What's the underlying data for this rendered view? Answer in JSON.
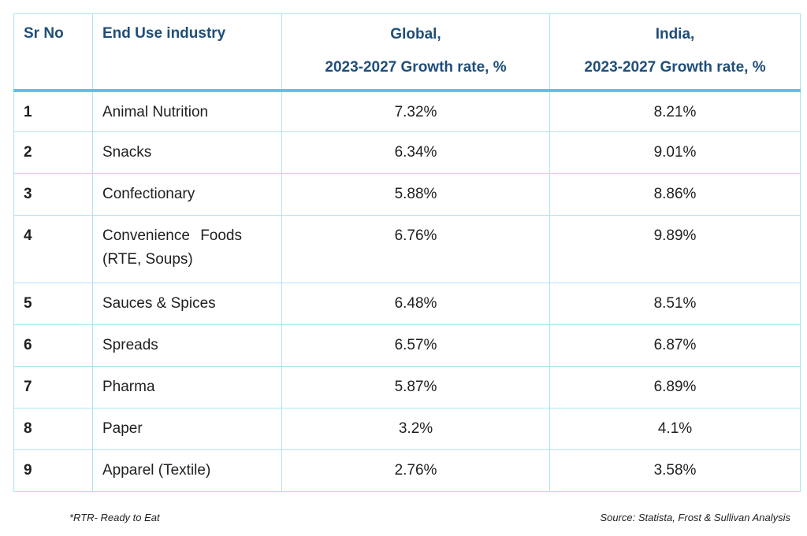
{
  "header": {
    "sr_no": "Sr No",
    "end_use": "End Use industry",
    "global_line1": "Global,",
    "global_line2": "2023-2027 Growth rate, %",
    "india_line1": "India,",
    "india_line2": "2023-2027 Growth rate, %"
  },
  "rows": [
    {
      "sr": "1",
      "industry": "Animal Nutrition",
      "global": "7.32%",
      "india": "8.21%"
    },
    {
      "sr": "2",
      "industry": "Snacks",
      "global": "6.34%",
      "india": "9.01%"
    },
    {
      "sr": "3",
      "industry": "Confectionary",
      "global": "5.88%",
      "india": "8.86%"
    },
    {
      "sr": "4",
      "industry_line1": "Convenience Foods",
      "industry_line2": "(RTE, Soups)",
      "global": "6.76%",
      "india": "9.89%"
    },
    {
      "sr": "5",
      "industry": "Sauces & Spices",
      "global": "6.48%",
      "india": "8.51%"
    },
    {
      "sr": "6",
      "industry": "Spreads",
      "global": "6.57%",
      "india": "6.87%"
    },
    {
      "sr": "7",
      "industry": "Pharma",
      "global": "5.87%",
      "india": "6.89%"
    },
    {
      "sr": "8",
      "industry": "Paper",
      "global": "3.2%",
      "india": "4.1%"
    },
    {
      "sr": "9",
      "industry": "Apparel (Textile)",
      "global": "2.76%",
      "india": "3.58%"
    }
  ],
  "footnote": "*RTR- Ready to Eat",
  "source": "Source: Statista, Frost & Sullivan Analysis",
  "colors": {
    "header_text": "#1f4e79",
    "border": "#aee3f3",
    "header_rule": "#5bc4ea"
  }
}
